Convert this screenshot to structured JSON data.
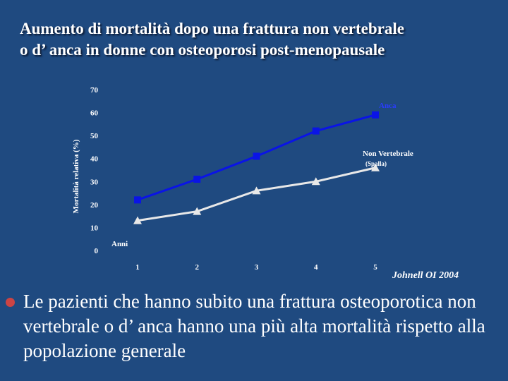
{
  "slide": {
    "title_line1": "Aumento di mortalità dopo una frattura non vertebrale",
    "title_line2": "o d’ anca in donne con osteoporosi post-menopausale",
    "citation": "Johnell OI 2004",
    "bullet_text": "Le pazienti che hanno subito una frattura osteoporotica non vertebrale o d’ anca hanno una più alta mortalità rispetto alla popolazione generale"
  },
  "colors": {
    "background": "#1f4a80",
    "anca": "#0a14e6",
    "non_vertebrale": "#e8e8e8",
    "bullet": "#cc4444"
  },
  "chart_data": {
    "type": "line",
    "x": [
      1,
      2,
      3,
      4,
      5
    ],
    "x_label": "Anni",
    "ylabel": "Mortalità relativa (%)",
    "ylim": [
      0,
      70
    ],
    "y_ticks": [
      0,
      10,
      20,
      30,
      40,
      50,
      60,
      70
    ],
    "grid": false,
    "series": [
      {
        "name": "Anca",
        "sublabel": "",
        "marker": "square",
        "values": [
          22,
          31,
          41,
          52,
          59
        ]
      },
      {
        "name": "Non Vertebrale",
        "sublabel": "(Spalla)",
        "marker": "triangle",
        "values": [
          13,
          17,
          26,
          30,
          36
        ]
      }
    ]
  }
}
